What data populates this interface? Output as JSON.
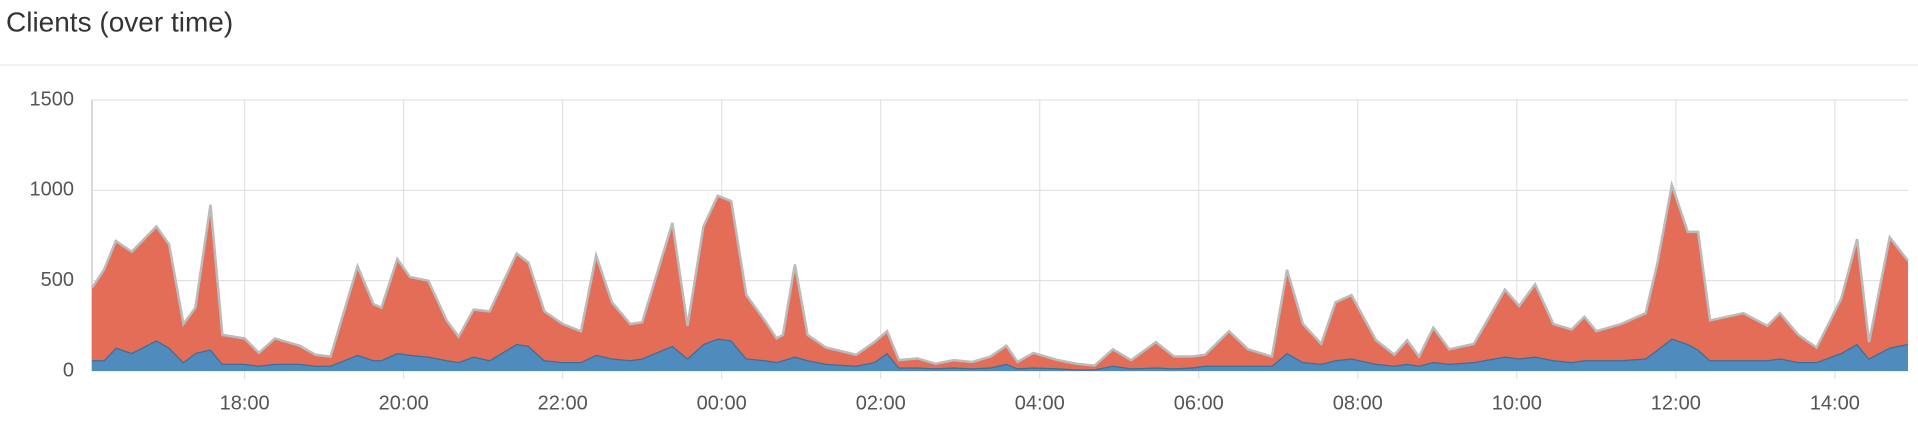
{
  "chart_data": {
    "type": "stacked-area",
    "title": "Clients (over time)",
    "x": [
      16.08,
      16.23,
      16.38,
      16.58,
      16.89,
      17.05,
      17.23,
      17.38,
      17.57,
      17.72,
      18.0,
      18.18,
      18.38,
      18.69,
      18.89,
      19.08,
      19.42,
      19.62,
      19.72,
      19.92,
      20.08,
      20.31,
      20.54,
      20.69,
      20.88,
      21.08,
      21.42,
      21.57,
      21.77,
      22.0,
      22.23,
      22.42,
      22.62,
      22.85,
      23.0,
      23.38,
      23.57,
      23.77,
      23.95,
      24.12,
      24.31,
      24.54,
      24.69,
      24.77,
      24.92,
      25.08,
      25.31,
      25.69,
      25.92,
      26.08,
      26.23,
      26.46,
      26.69,
      26.92,
      27.15,
      27.38,
      27.58,
      27.72,
      27.92,
      28.23,
      28.46,
      28.69,
      28.92,
      29.15,
      29.46,
      29.69,
      29.92,
      30.08,
      30.38,
      30.62,
      30.92,
      31.11,
      31.31,
      31.54,
      31.72,
      31.92,
      32.23,
      32.46,
      32.62,
      32.77,
      32.95,
      33.15,
      33.46,
      33.85,
      34.03,
      34.23,
      34.46,
      34.69,
      34.85,
      35.0,
      35.31,
      35.62,
      35.77,
      35.95,
      36.15,
      36.28,
      36.43,
      36.85,
      37.15,
      37.31,
      37.54,
      37.77,
      38.08,
      38.28,
      38.43,
      38.69,
      38.92
    ],
    "series": [
      {
        "color": "#4f8bbd",
        "values": [
          60,
          60,
          130,
          100,
          170,
          130,
          50,
          100,
          120,
          40,
          40,
          30,
          40,
          40,
          30,
          30,
          90,
          60,
          60,
          100,
          90,
          80,
          60,
          50,
          80,
          60,
          150,
          140,
          60,
          50,
          50,
          90,
          70,
          60,
          70,
          140,
          70,
          150,
          180,
          170,
          70,
          60,
          50,
          60,
          80,
          60,
          40,
          30,
          50,
          100,
          20,
          20,
          15,
          20,
          15,
          20,
          40,
          15,
          20,
          15,
          10,
          10,
          30,
          15,
          20,
          15,
          20,
          30,
          30,
          30,
          30,
          100,
          50,
          40,
          60,
          70,
          40,
          30,
          40,
          30,
          50,
          40,
          50,
          80,
          70,
          80,
          60,
          50,
          60,
          60,
          60,
          70,
          120,
          180,
          150,
          120,
          60,
          60,
          60,
          70,
          50,
          50,
          100,
          150,
          70,
          130,
          150
        ]
      },
      {
        "color": "#e36d57",
        "values": [
          400,
          500,
          590,
          560,
          630,
          570,
          210,
          250,
          800,
          160,
          140,
          70,
          140,
          100,
          60,
          50,
          490,
          310,
          290,
          520,
          430,
          420,
          220,
          140,
          260,
          270,
          500,
          460,
          270,
          210,
          170,
          550,
          310,
          200,
          200,
          680,
          180,
          650,
          790,
          770,
          350,
          220,
          130,
          140,
          510,
          140,
          90,
          60,
          110,
          120,
          40,
          50,
          25,
          40,
          35,
          60,
          100,
          35,
          80,
          45,
          30,
          20,
          90,
          45,
          140,
          65,
          60,
          60,
          190,
          90,
          50,
          460,
          210,
          110,
          320,
          350,
          130,
          60,
          130,
          50,
          190,
          80,
          100,
          370,
          290,
          400,
          200,
          180,
          240,
          160,
          200,
          250,
          480,
          850,
          620,
          650,
          220,
          260,
          190,
          250,
          150,
          80,
          300,
          580,
          90,
          610,
          460
        ]
      }
    ],
    "xlim": [
      16.08,
      38.92
    ],
    "xticks": [
      {
        "value": 18,
        "label": "18:00"
      },
      {
        "value": 20,
        "label": "20:00"
      },
      {
        "value": 22,
        "label": "22:00"
      },
      {
        "value": 24,
        "label": "00:00"
      },
      {
        "value": 26,
        "label": "02:00"
      },
      {
        "value": 28,
        "label": "04:00"
      },
      {
        "value": 30,
        "label": "06:00"
      },
      {
        "value": 32,
        "label": "08:00"
      },
      {
        "value": 34,
        "label": "10:00"
      },
      {
        "value": 36,
        "label": "12:00"
      },
      {
        "value": 38,
        "label": "14:00"
      }
    ],
    "ylim": [
      0,
      1500
    ],
    "yticks": [
      0,
      500,
      1000,
      1500
    ],
    "grid": true
  }
}
